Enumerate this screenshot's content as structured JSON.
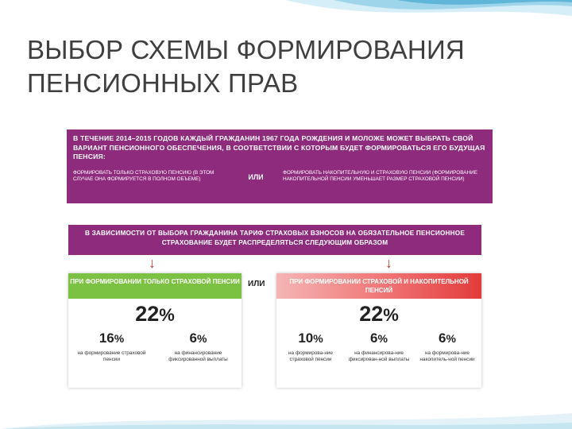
{
  "slide": {
    "title_line1": "ВЫБОР СХЕМЫ ФОРМИРОВАНИЯ",
    "title_line2": "ПЕНСИОННЫХ ПРАВ"
  },
  "info": {
    "intro": "В течение 2014–2015 годов каждый гражданин 1967 года рождения и моложе может выбрать свой вариант пенсионного обеспечения, в соответствии с которым будет формироваться его будущая пенсия:",
    "left_option": "Формировать только страховую пенсию (в этом случае она формируется в полном объеме)",
    "or": "ИЛИ",
    "right_option": "Формировать накопительную и страховую пенсии (формирование накопительной пенсии уменьшает размер страховой пенсии)"
  },
  "distribution": {
    "text": "В зависимости от выбора гражданина тариф страховых взносов на обязательное пенсионное страхование будет распределяться следующим образом"
  },
  "between_or": "ИЛИ",
  "left_card": {
    "header": "При формировании только страховой пенсии",
    "total": "22",
    "unit": "%",
    "parts": [
      {
        "value": "16",
        "unit": "%",
        "label": "на формирование страховой пенсии"
      },
      {
        "value": "6",
        "unit": "%",
        "label": "на финансирование фиксированной выплаты"
      }
    ]
  },
  "right_card": {
    "header": "При формировании страховой и накопительной пенсий",
    "total": "22",
    "unit": "%",
    "parts": [
      {
        "value": "10",
        "unit": "%",
        "label": "на формирова-ние страховой пенсии"
      },
      {
        "value": "6",
        "unit": "%",
        "label": "на финансирова-ние фиксирован-ной выплаты"
      },
      {
        "value": "6",
        "unit": "%",
        "label": "на формирова-ние накопитель-ной пенсии"
      }
    ]
  },
  "colors": {
    "purple": "#8e2b7d",
    "green": "#7cc242",
    "red": "#e23b3b",
    "arrow": "#c0392b"
  }
}
